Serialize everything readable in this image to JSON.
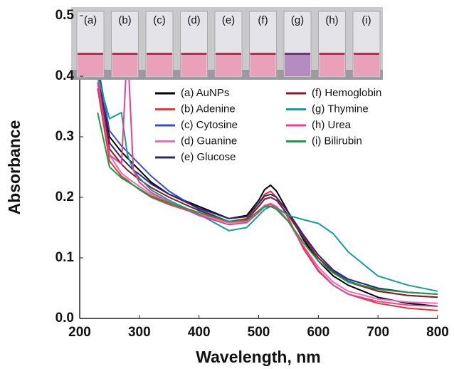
{
  "chart_data": {
    "type": "line",
    "xlabel": "Wavelength, nm",
    "ylabel": "Absorbance",
    "x": [
      230,
      250,
      270,
      280,
      290,
      300,
      320,
      350,
      400,
      450,
      480,
      500,
      510,
      520,
      530,
      550,
      575,
      600,
      625,
      650,
      700,
      750,
      800
    ],
    "series": [
      {
        "name": "(a) AuNPs",
        "color": "#000000",
        "values": [
          0.4,
          0.3,
          0.275,
          0.265,
          0.255,
          0.245,
          0.225,
          0.205,
          0.185,
          0.165,
          0.17,
          0.195,
          0.213,
          0.22,
          0.21,
          0.175,
          0.13,
          0.095,
          0.07,
          0.055,
          0.035,
          0.025,
          0.02
        ]
      },
      {
        "name": "(b) Adenine",
        "color": "#e8323c",
        "values": [
          0.38,
          0.26,
          0.235,
          0.228,
          0.22,
          0.213,
          0.2,
          0.188,
          0.172,
          0.16,
          0.165,
          0.19,
          0.205,
          0.21,
          0.2,
          0.165,
          0.115,
          0.078,
          0.055,
          0.04,
          0.025,
          0.017,
          0.013
        ]
      },
      {
        "name": "(c) Cytosine",
        "color": "#3a4fc4",
        "values": [
          0.42,
          0.31,
          0.285,
          0.275,
          0.265,
          0.255,
          0.235,
          0.21,
          0.18,
          0.16,
          0.163,
          0.185,
          0.197,
          0.2,
          0.195,
          0.17,
          0.135,
          0.1,
          0.078,
          0.062,
          0.045,
          0.038,
          0.035
        ]
      },
      {
        "name": "(d) Guanine",
        "color": "#e070b8",
        "values": [
          0.4,
          0.27,
          0.24,
          0.232,
          0.225,
          0.218,
          0.205,
          0.19,
          0.172,
          0.158,
          0.16,
          0.178,
          0.187,
          0.19,
          0.185,
          0.16,
          0.12,
          0.085,
          0.06,
          0.045,
          0.032,
          0.027,
          0.025
        ]
      },
      {
        "name": "(e) Glucose",
        "color": "#2a2a70",
        "values": [
          0.41,
          0.29,
          0.265,
          0.255,
          0.245,
          0.238,
          0.222,
          0.205,
          0.182,
          0.165,
          0.168,
          0.19,
          0.202,
          0.205,
          0.2,
          0.175,
          0.138,
          0.105,
          0.08,
          0.065,
          0.05,
          0.043,
          0.04
        ]
      },
      {
        "name": "(f) Hemoglobin",
        "color": "#8b1a2a",
        "values": [
          0.39,
          0.28,
          0.255,
          0.245,
          0.237,
          0.23,
          0.216,
          0.2,
          0.178,
          0.16,
          0.163,
          0.185,
          0.197,
          0.2,
          0.195,
          0.17,
          0.133,
          0.1,
          0.076,
          0.06,
          0.045,
          0.038,
          0.035
        ]
      },
      {
        "name": "(g) Thymine",
        "color": "#1a9a9a",
        "values": [
          0.4,
          0.33,
          0.34,
          0.27,
          0.245,
          0.232,
          0.212,
          0.195,
          0.172,
          0.145,
          0.15,
          0.17,
          0.18,
          0.185,
          0.183,
          0.17,
          0.163,
          0.157,
          0.14,
          0.11,
          0.07,
          0.055,
          0.045
        ]
      },
      {
        "name": "(h) Urea",
        "color": "#e8408c",
        "values": [
          0.39,
          0.27,
          0.255,
          0.45,
          0.245,
          0.225,
          0.208,
          0.192,
          0.17,
          0.155,
          0.158,
          0.175,
          0.185,
          0.188,
          0.183,
          0.16,
          0.118,
          0.08,
          0.055,
          0.04,
          0.028,
          0.022,
          0.02
        ]
      },
      {
        "name": "(i) Bilirubin",
        "color": "#1e9a3e",
        "values": [
          0.34,
          0.25,
          0.232,
          0.226,
          0.22,
          0.214,
          0.202,
          0.19,
          0.175,
          0.16,
          0.162,
          0.178,
          0.184,
          0.185,
          0.18,
          0.16,
          0.125,
          0.095,
          0.075,
          0.06,
          0.048,
          0.043,
          0.04
        ]
      }
    ],
    "xlim": [
      200,
      800
    ],
    "xticks": [
      200,
      300,
      400,
      500,
      600,
      700,
      800
    ],
    "ylim": [
      0,
      0.5
    ],
    "yticks": [
      {
        "value": 0,
        "label": "0.0"
      },
      0.1,
      0.2,
      0.3,
      0.4,
      0.5
    ],
    "inset_labels": [
      "(a)",
      "(b)",
      "(c)",
      "(d)",
      "(e)",
      "(f)",
      "(g)",
      "(h)",
      "(i)"
    ]
  }
}
